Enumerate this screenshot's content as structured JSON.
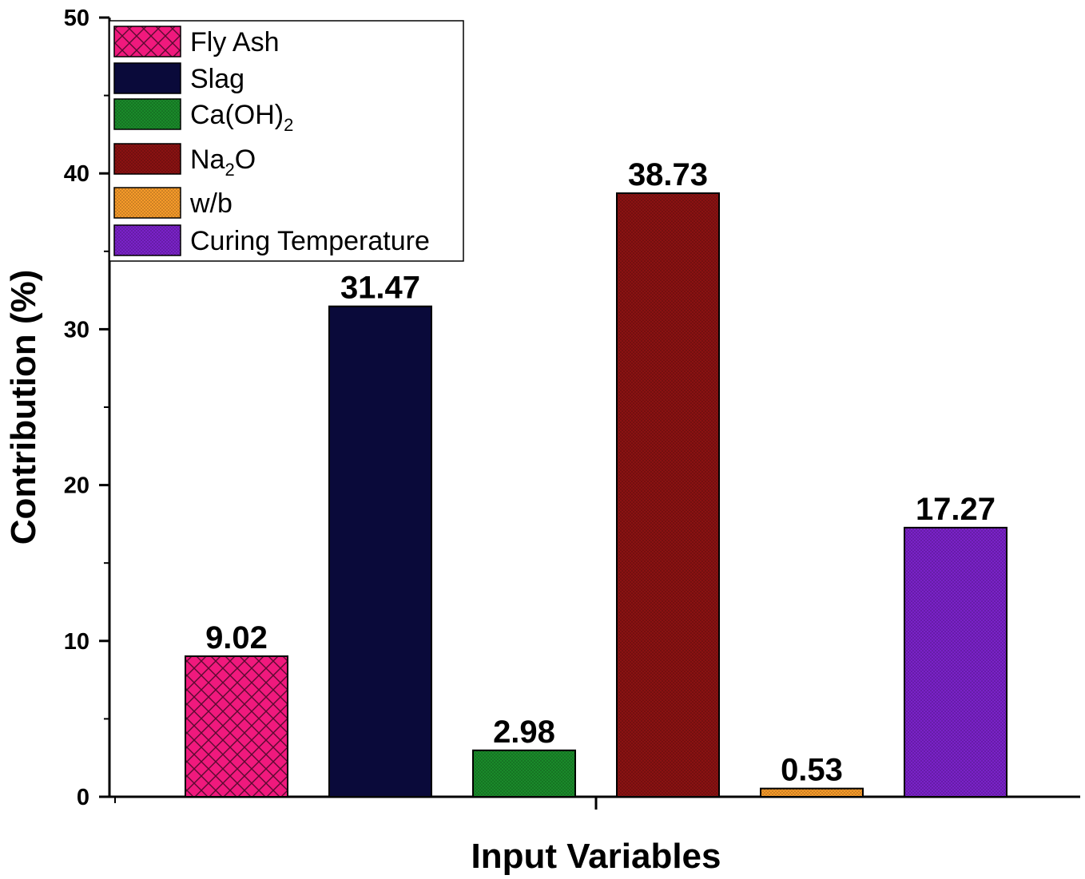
{
  "chart_data": {
    "type": "bar",
    "title": "",
    "xlabel": "Input Variables",
    "ylabel": "Contribution (%)",
    "ylim": [
      0,
      50
    ],
    "yticks": [
      "0",
      "10",
      "20",
      "30",
      "40",
      "50"
    ],
    "legend_position": "top-left",
    "series": [
      {
        "name": "Fly Ash",
        "label_main": "Fly Ash",
        "label_sub": "",
        "label_tail": "",
        "value": 9.02,
        "value_label": "9.02",
        "color": "#f0197d",
        "pattern": "crosshatch"
      },
      {
        "name": "Slag",
        "label_main": "Slag",
        "label_sub": "",
        "label_tail": "",
        "value": 31.47,
        "value_label": "31.47",
        "color": "#0a0a3a",
        "pattern": "solid"
      },
      {
        "name": "Ca(OH)2",
        "label_main": "Ca(OH)",
        "label_sub": "2",
        "label_tail": "",
        "value": 2.98,
        "value_label": "2.98",
        "color": "#1a8a2a",
        "pattern": "dots"
      },
      {
        "name": "Na2O",
        "label_main": "Na",
        "label_sub": "2",
        "label_tail": "O",
        "value": 38.73,
        "value_label": "38.73",
        "color": "#8a1212",
        "pattern": "dots"
      },
      {
        "name": "w/b",
        "label_main": "w/b",
        "label_sub": "",
        "label_tail": "",
        "value": 0.53,
        "value_label": "0.53",
        "color": "#f59a2a",
        "pattern": "dots"
      },
      {
        "name": "Curing Temperature",
        "label_main": "Curing Temperature",
        "label_sub": "",
        "label_tail": "",
        "value": 17.27,
        "value_label": "17.27",
        "color": "#7a22c8",
        "pattern": "dots"
      }
    ]
  }
}
